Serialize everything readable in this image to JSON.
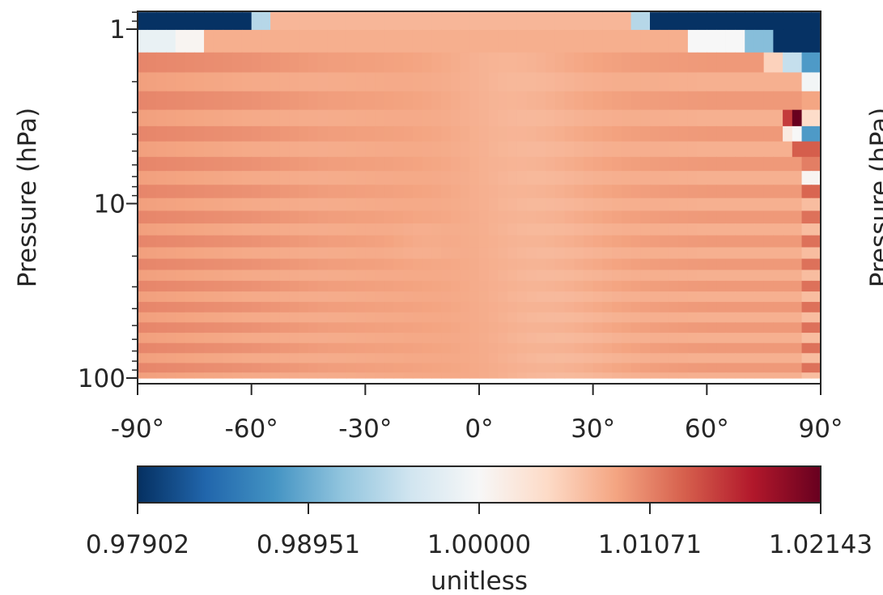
{
  "chart_data": {
    "type": "heatmap",
    "title": "",
    "xlabel": "",
    "ylabel": "Pressure (hPa)",
    "right_partial_ylabel": "Pressure (hPa)",
    "x_scale": "linear",
    "y_scale": "log",
    "y_inverted": true,
    "xlim": [
      -90,
      90
    ],
    "ylim": [
      1,
      100
    ],
    "x_ticks": [
      -90,
      -60,
      -30,
      0,
      30,
      60,
      90
    ],
    "x_tick_labels": [
      "-90°",
      "-60°",
      "-30°",
      "0°",
      "30°",
      "60°",
      "90°"
    ],
    "y_ticks": [
      1,
      10,
      100
    ],
    "y_tick_labels": [
      "1",
      "10",
      "100"
    ],
    "grid": false,
    "colormap": "RdBu_r",
    "colormap_stops": [
      "#053061",
      "#2166ac",
      "#4393c3",
      "#92c5de",
      "#d1e5f0",
      "#f7f7f7",
      "#fddbc7",
      "#f4a582",
      "#d6604d",
      "#b2182b",
      "#67001f"
    ],
    "colorbar": {
      "label": "unitless",
      "orientation": "horizontal",
      "min": 0.97902,
      "max": 1.02143,
      "center": 1.0,
      "ticks": [
        0.97902,
        0.98951,
        1.0,
        1.01071,
        1.02143
      ],
      "tick_labels": [
        "0.97902",
        "0.98951",
        "1.00000",
        "1.01071",
        "1.02143"
      ]
    },
    "lat_bins": [
      -88.75,
      -86.25,
      -83.75,
      -81.25,
      -78.75,
      -76.25,
      -73.75,
      -71.25,
      -68.75,
      -66.25,
      -63.75,
      -61.25,
      -58.75,
      -56.25,
      -53.75,
      -51.25,
      -48.75,
      -46.25,
      -43.75,
      -41.25,
      -38.75,
      -36.25,
      -33.75,
      -31.25,
      -28.75,
      -26.25,
      -23.75,
      -21.25,
      -18.75,
      -16.25,
      -13.75,
      -11.25,
      -8.75,
      -6.25,
      -3.75,
      -1.25,
      1.25,
      3.75,
      6.25,
      8.75,
      11.25,
      13.75,
      16.25,
      18.75,
      21.25,
      23.75,
      26.25,
      28.75,
      31.25,
      33.75,
      36.25,
      38.75,
      41.25,
      43.75,
      46.25,
      48.75,
      51.25,
      53.75,
      56.25,
      58.75,
      61.25,
      63.75,
      66.25,
      68.75,
      71.25,
      73.75,
      76.25,
      78.75,
      81.25,
      83.75,
      86.25,
      88.75
    ],
    "pressure_level_edges_hPa": [
      0.8,
      1.01,
      1.36,
      1.77,
      2.27,
      2.9,
      3.6,
      4.4,
      5.4,
      6.5,
      7.8,
      9.3,
      11.0,
      13.0,
      15.2,
      17.8,
      20.7,
      24.0,
      27.7,
      31.9,
      36.6,
      42.0,
      48.0,
      55.0,
      63.0,
      72.0,
      82.0,
      93.0,
      100.0
    ],
    "base_field_description_values": {
      "background_level": 1.0085,
      "equatorial_minimum": 1.0072,
      "southern_high_lat_typical": 1.0098,
      "northern_polar_upper_anomalies": [
        0.979,
        0.99,
        1.0214
      ]
    }
  }
}
